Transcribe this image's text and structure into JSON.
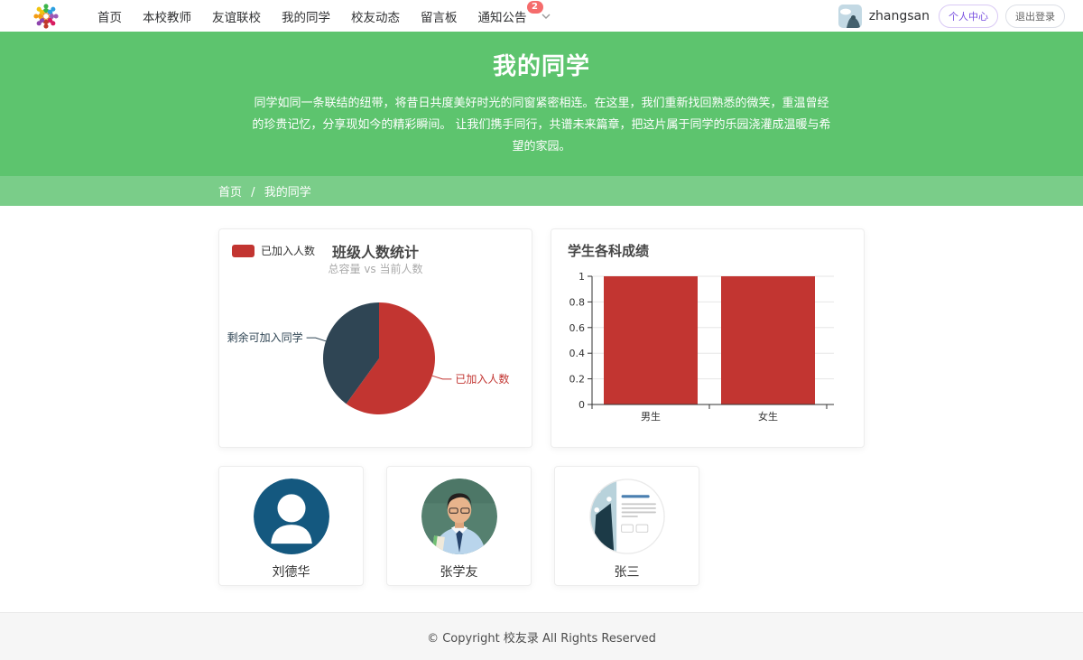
{
  "navbar": {
    "items": [
      "首页",
      "本校教师",
      "友谊联校",
      "我的同学",
      "校友动态",
      "留言板"
    ],
    "notification": {
      "label": "通知公告",
      "badge": "2"
    },
    "user": {
      "name": "zhangsan",
      "profile_label": "个人中心",
      "logout_label": "退出登录"
    }
  },
  "hero": {
    "title": "我的同学",
    "description": "同学如同一条联结的纽带，将昔日共度美好时光的同窗紧密相连。在这里，我们重新找回熟悉的微笑，重温曾经的珍贵记忆，分享现如今的精彩瞬间。 让我们携手同行，共谱未来篇章，把这片属于同学的乐园浇灌成温暖与希望的家园。"
  },
  "breadcrumb": {
    "home": "首页",
    "separator": "/",
    "current": "我的同学"
  },
  "chart_data": [
    {
      "type": "pie",
      "title": "班级人数统计",
      "subtitle": "总容量 vs 当前人数",
      "legend": [
        "已加入人数"
      ],
      "legend_position": "top-left",
      "slices": [
        {
          "label": "已加入人数",
          "value": 60,
          "color": "#c23531"
        },
        {
          "label": "剩余可加入同学",
          "value": 40,
          "color": "#2f4554"
        }
      ]
    },
    {
      "type": "bar",
      "title": "学生各科成绩",
      "categories": [
        "男生",
        "女生"
      ],
      "values": [
        1,
        1
      ],
      "color": "#c23531",
      "ylim": [
        0,
        1
      ],
      "yticks": [
        0,
        0.2,
        0.4,
        0.6,
        0.8,
        1
      ],
      "grid": true,
      "xlabel": "",
      "ylabel": ""
    }
  ],
  "students": [
    {
      "name": "刘德华",
      "avatar": "default-person-icon"
    },
    {
      "name": "张学友",
      "avatar": "portrait-photo"
    },
    {
      "name": "张三",
      "avatar": "webpage-screenshot"
    }
  ],
  "footer": {
    "copyright": "© Copyright 校友录 All Rights Reserved"
  },
  "colors": {
    "hero_green": "#5dc46e",
    "breadcrumb_green": "#7acd89",
    "badge_red": "#f56c6c",
    "pie_red": "#c23531",
    "pie_slate": "#2f4554",
    "profile_button_purple": "#7a51e0",
    "default_avatar_blue": "#14587f"
  }
}
